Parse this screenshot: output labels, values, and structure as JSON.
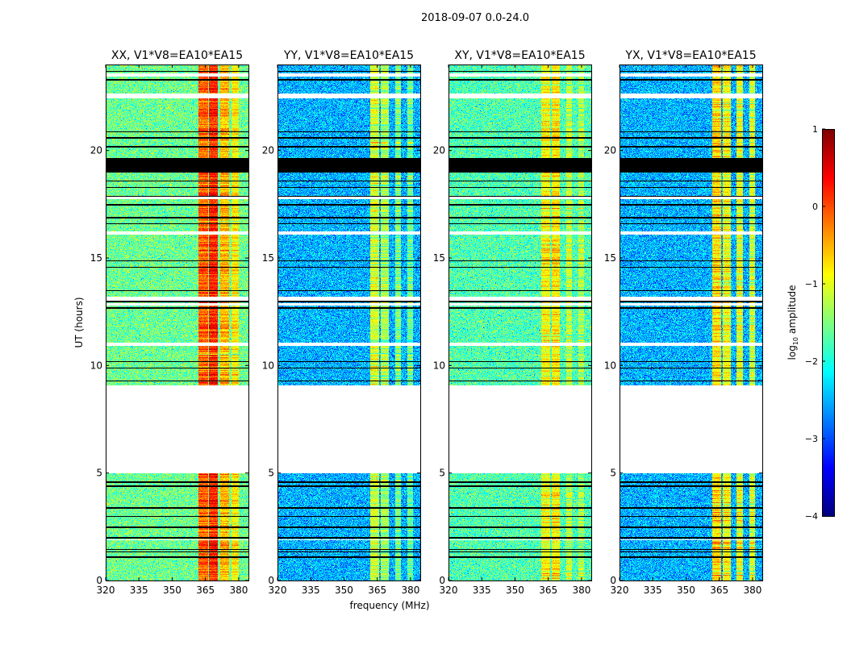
{
  "chart_data": {
    "type": "heatmap",
    "title": "2018-09-07 0.0-24.0",
    "xlabel": "frequency (MHz)",
    "ylabel": "UT (hours)",
    "xlim": [
      320,
      384.4
    ],
    "ylim": [
      0,
      24
    ],
    "xticks": [
      320,
      335,
      350,
      365,
      380
    ],
    "yticks": [
      0,
      5,
      10,
      15,
      20
    ],
    "colorbar": {
      "label": "log10 amplitude",
      "label_main": "log",
      "label_sub": "10",
      "label_tail": " amplitude",
      "range": [
        -4,
        1
      ],
      "ticks": [
        1,
        0,
        -1,
        -2,
        -3,
        -4
      ],
      "tick_labels": [
        "1",
        "0",
        "−1",
        "−2",
        "−3",
        "−4"
      ],
      "colormap": "jet"
    },
    "no_data_hours": [
      [
        5.0,
        9.1
      ]
    ],
    "flagged_black_hours": [
      [
        19.0,
        19.65
      ]
    ],
    "black_lines_hours": [
      23.7,
      23.3,
      20.9,
      20.6,
      20.2,
      18.6,
      18.3,
      17.9,
      17.5,
      16.9,
      16.6,
      14.9,
      14.6,
      13.5,
      13.0,
      12.7,
      10.2,
      9.9,
      9.3,
      4.6,
      4.4,
      3.4,
      3.0,
      2.5,
      2.0,
      1.45,
      1.35,
      1.1
    ],
    "white_gaps_hours": [
      [
        23.45,
        23.6
      ],
      [
        22.45,
        22.65
      ],
      [
        17.75,
        17.85
      ],
      [
        16.1,
        16.25
      ],
      [
        13.05,
        13.2
      ],
      [
        12.8,
        12.9
      ],
      [
        10.95,
        11.1
      ],
      [
        1.9,
        1.95
      ]
    ],
    "panels": [
      {
        "title": "XX, V1*V8=EA10*EA15",
        "base_level": -1.6,
        "rfi_bands_mhz": [
          {
            "range": [
              361.5,
              366
            ],
            "level": -0.1
          },
          {
            "range": [
              366.5,
              370.5
            ],
            "level": 0.2
          },
          {
            "range": [
              371.5,
              375.5
            ],
            "level": -0.5
          },
          {
            "range": [
              376.5,
              380
            ],
            "level": -0.8
          }
        ]
      },
      {
        "title": "YY, V1*V8=EA10*EA15",
        "base_level": -2.5,
        "rfi_bands_mhz": [
          {
            "range": [
              361.5,
              365.5
            ],
            "level": -1.1
          },
          {
            "range": [
              366.5,
              370
            ],
            "level": -1.3
          },
          {
            "range": [
              373,
              375.5
            ],
            "level": -1.5
          },
          {
            "range": [
              378.5,
              381
            ],
            "level": -1.6
          }
        ]
      },
      {
        "title": "XY, V1*V8=EA10*EA15",
        "base_level": -1.75,
        "rfi_bands_mhz": [
          {
            "range": [
              361.5,
              365.5
            ],
            "level": -0.9
          },
          {
            "range": [
              366.5,
              370
            ],
            "level": -0.8
          },
          {
            "range": [
              373,
              375.5
            ],
            "level": -1.2
          },
          {
            "range": [
              378.5,
              381
            ],
            "level": -1.3
          }
        ]
      },
      {
        "title": "YX, V1*V8=EA10*EA15",
        "base_level": -2.5,
        "rfi_bands_mhz": [
          {
            "range": [
              361.5,
              365.5
            ],
            "level": -0.7
          },
          {
            "range": [
              366.5,
              370
            ],
            "level": -0.9
          },
          {
            "range": [
              372.5,
              375.5
            ],
            "level": -1.0
          },
          {
            "range": [
              378.5,
              381
            ],
            "level": -1.1
          }
        ]
      }
    ]
  }
}
